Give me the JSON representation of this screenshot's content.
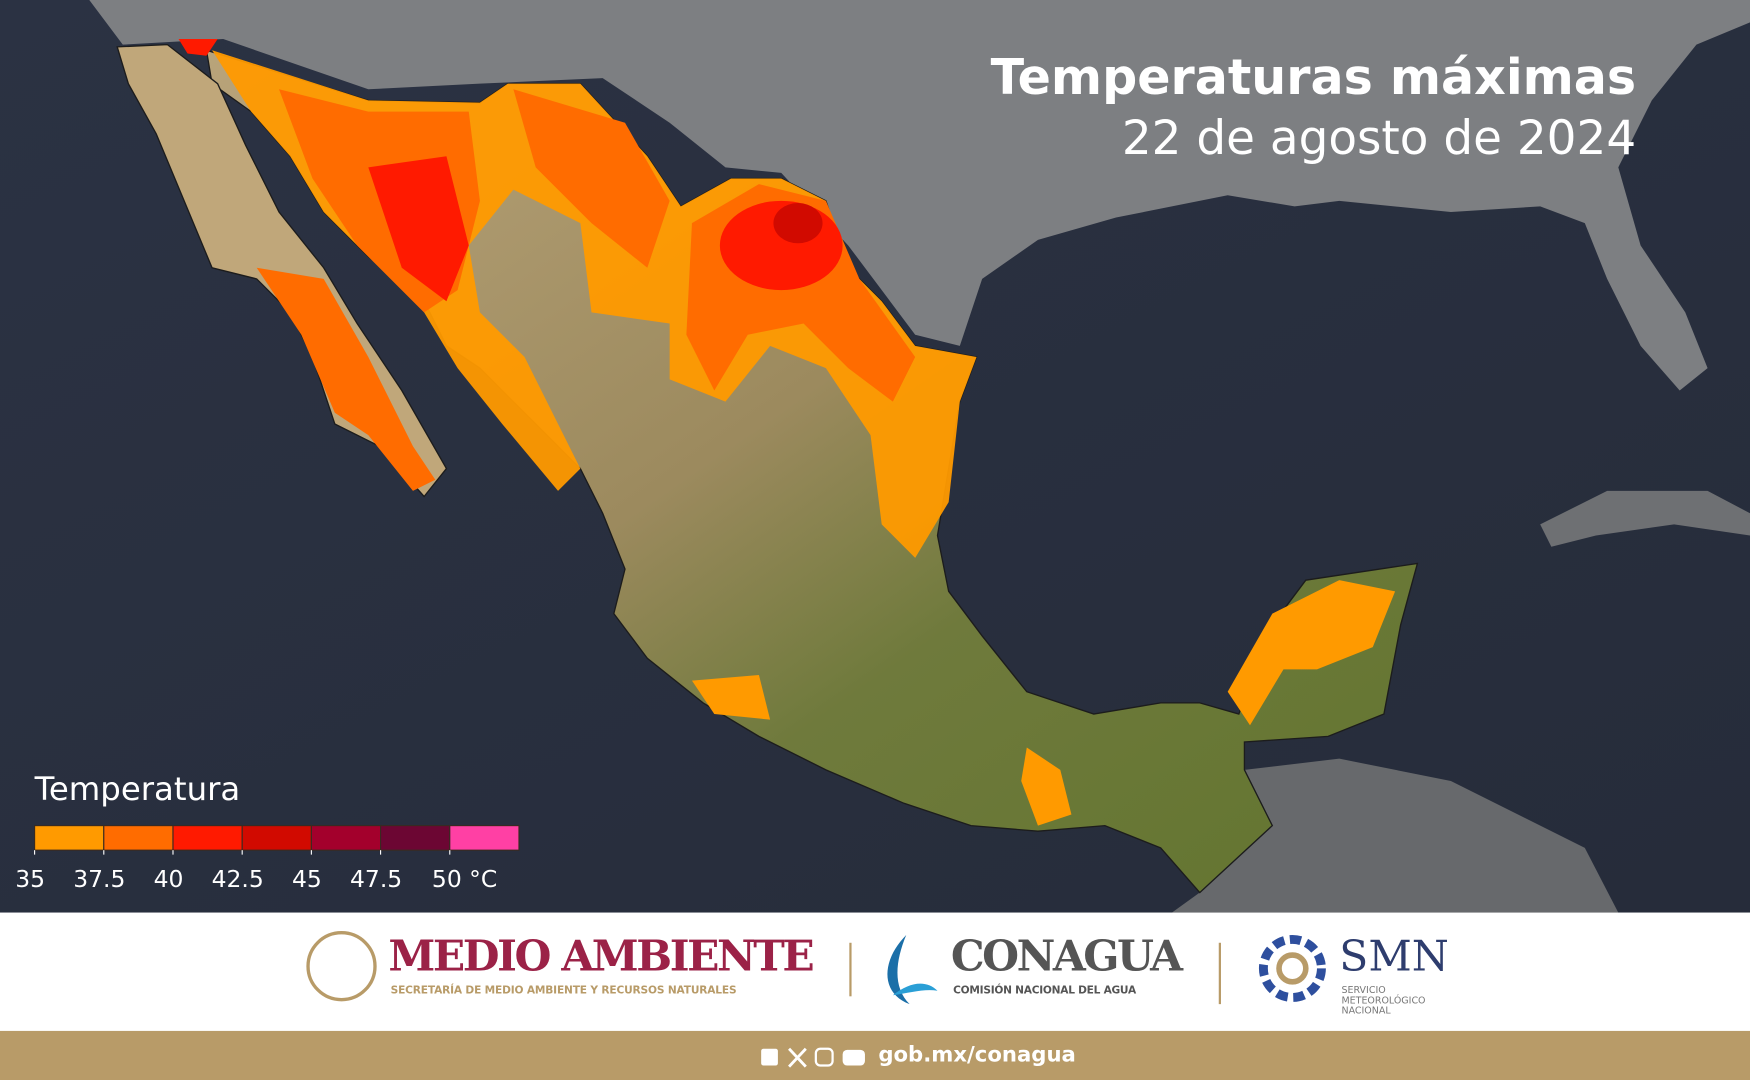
{
  "title": "Temperaturas máximas",
  "subtitle": "22 de agosto de 2024",
  "legend": {
    "title": "Temperatura",
    "ticks": [
      35,
      37.5,
      40,
      42.5,
      45,
      47.5,
      {
        "value": 50,
        "label": "50 °C"
      }
    ],
    "colors": [
      "#ff9a00",
      "#ff6c00",
      "#ff1a00",
      "#d10a00",
      "#a3002c",
      "#6c0633",
      "#ff40a4"
    ]
  },
  "footer": {
    "logos": [
      {
        "name": "MEDIO AMBIENTE",
        "tagline": "SECRETARÍA DE MEDIO AMBIENTE Y RECURSOS NATURALES"
      },
      {
        "name": "CONAGUA",
        "tagline": "COMISIÓN NACIONAL DEL AGUA"
      },
      {
        "name": "SMN",
        "tagline": [
          "SERVICIO",
          "METEOROLÓGICO",
          "NACIONAL"
        ]
      }
    ],
    "url": "gob.mx/conagua"
  }
}
